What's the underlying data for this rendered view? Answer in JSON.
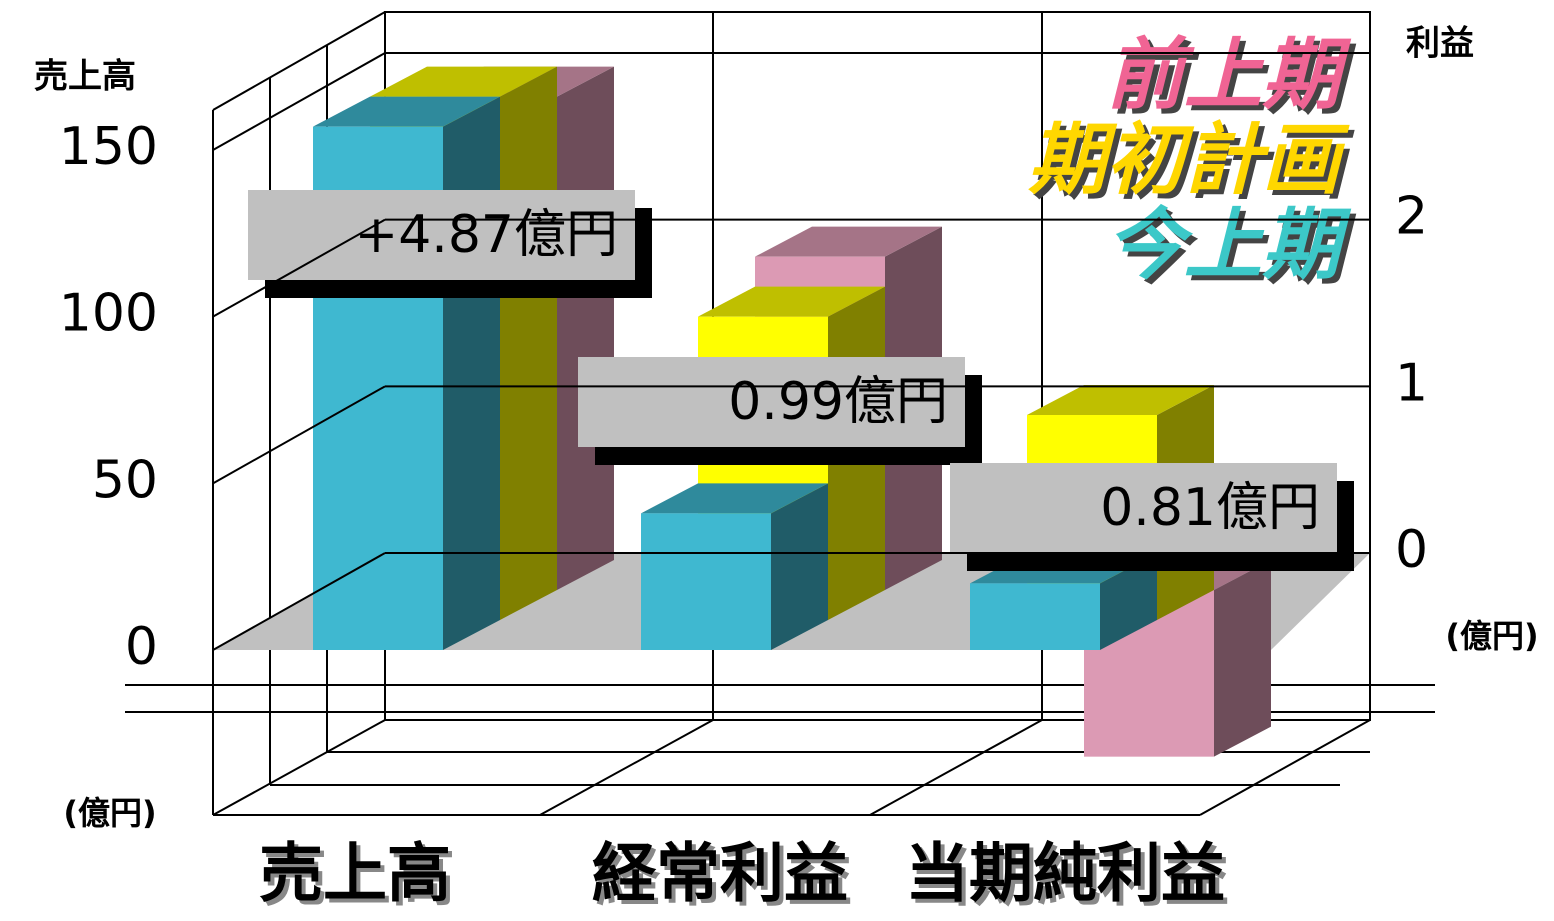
{
  "chart_data": {
    "type": "bar3d",
    "y_title": "売上高",
    "y2_title": "利益",
    "y_unit": "(億円)",
    "y2_unit": "(億円)",
    "categories": [
      "売上高",
      "経常利益",
      "当期純利益"
    ],
    "category_axis": [
      "y",
      "y2",
      "y2"
    ],
    "series": [
      {
        "name": "今上期",
        "color": "#3fb8d0",
        "legend_color": "#3cc8c8",
        "values": [
          157,
          0.82,
          0.4
        ]
      },
      {
        "name": "期初計画",
        "color": "#ffff00",
        "legend_color": "#ffd700",
        "values": [
          157,
          1.82,
          1.23
        ]
      },
      {
        "name": "前上期",
        "color": "#dc9ab4",
        "legend_color": "#f06494",
        "values": [
          148,
          2.0,
          -1.0
        ]
      }
    ],
    "annotations": [
      "+4.87億円",
      "0.99億円",
      "0.81億円"
    ],
    "ylim": [
      0,
      150
    ],
    "yticks": [
      0,
      50,
      100,
      150
    ],
    "y2lim": [
      0,
      3
    ],
    "y2ticks": [
      0,
      1,
      2
    ],
    "grid": true
  }
}
